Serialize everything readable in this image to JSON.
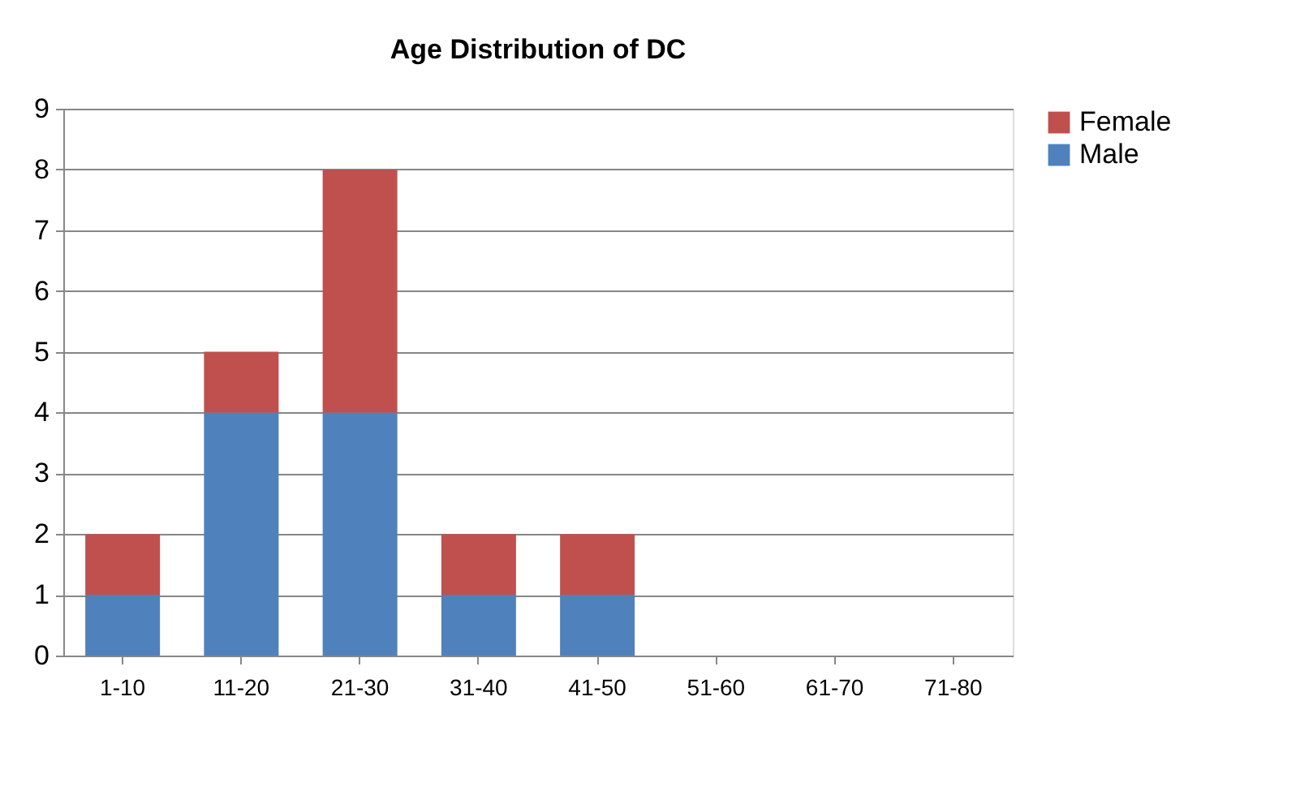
{
  "chart_data": {
    "type": "bar",
    "title": "Age Distribution of DC",
    "stacked": true,
    "categories": [
      "1-10",
      "11-20",
      "21-30",
      "31-40",
      "41-50",
      "51-60",
      "61-70",
      "71-80"
    ],
    "series": [
      {
        "name": "Male",
        "color": "#4f81bd",
        "values": [
          1,
          4,
          4,
          1,
          1,
          0,
          0,
          0
        ]
      },
      {
        "name": "Female",
        "color": "#c0504d",
        "values": [
          1,
          1,
          4,
          1,
          1,
          0,
          0,
          0
        ]
      }
    ],
    "ylim": [
      0,
      9
    ],
    "yticks": [
      0,
      1,
      2,
      3,
      4,
      5,
      6,
      7,
      8,
      9
    ],
    "grid": "y",
    "legend": "right"
  }
}
